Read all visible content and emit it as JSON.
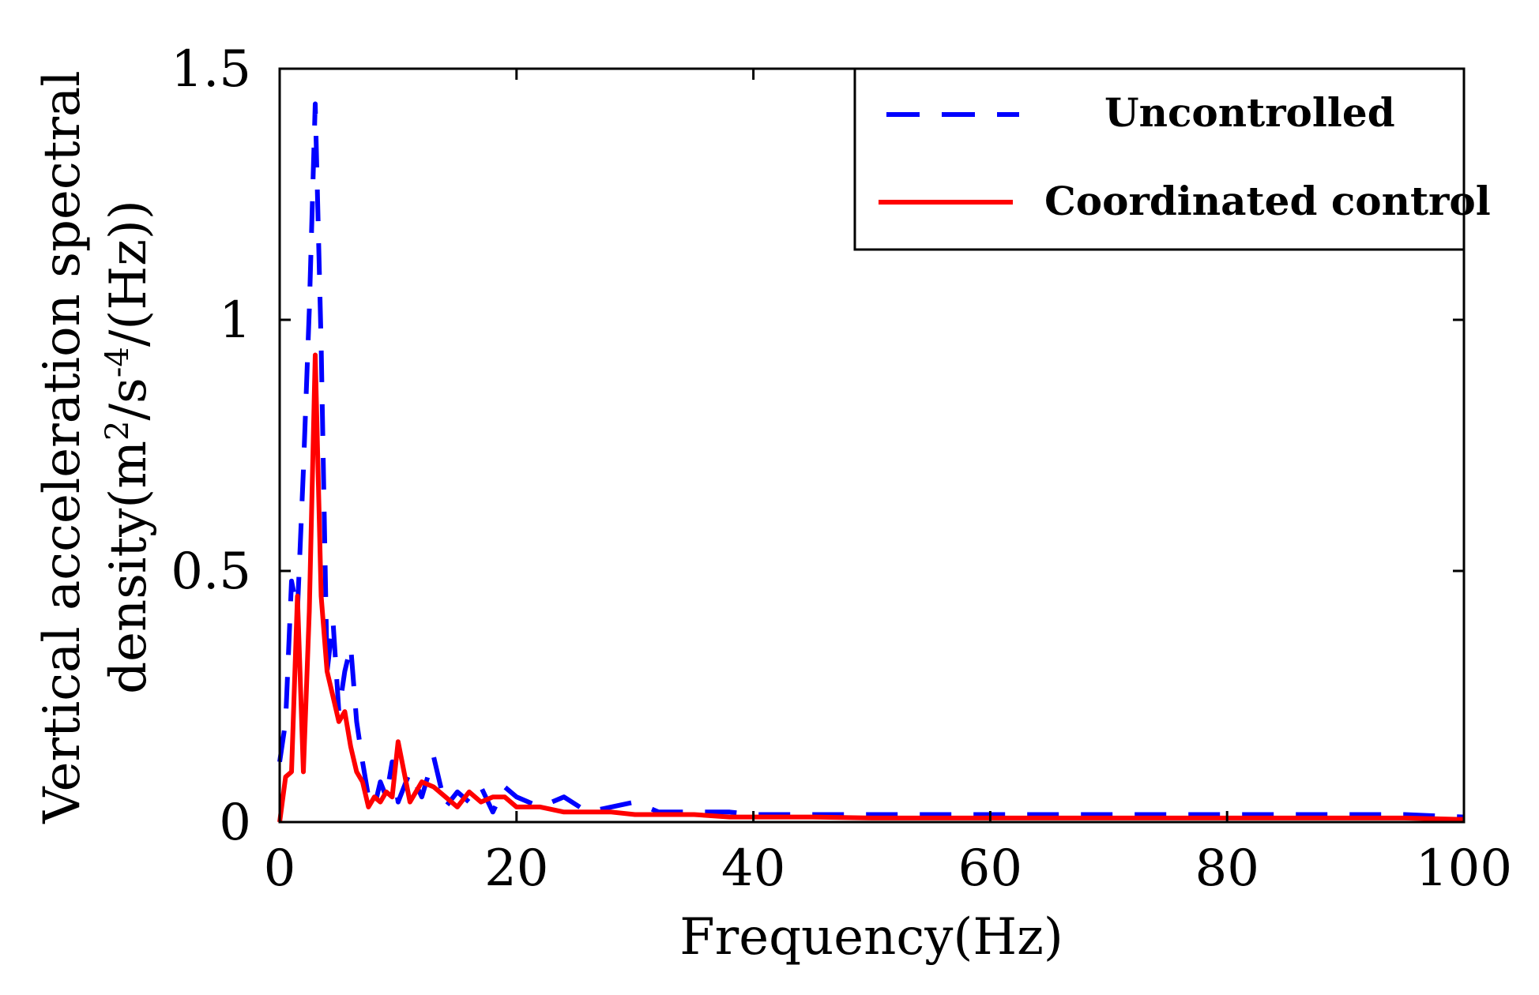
{
  "chart_data": {
    "type": "line",
    "title": "",
    "xlabel": "Frequency(Hz)",
    "ylabel_line1": "Vertical acceleration spectral",
    "ylabel_line2_prefix": "density(m",
    "ylabel_line2_sup1": "2",
    "ylabel_line2_mid": "/s",
    "ylabel_line2_sup2": "-4",
    "ylabel_line2_suffix": "/(Hz))",
    "xlim": [
      0,
      100
    ],
    "ylim": [
      0,
      1.5
    ],
    "xticks": [
      "0",
      "20",
      "40",
      "60",
      "80",
      "100"
    ],
    "xtick_values": [
      0,
      20,
      40,
      60,
      80,
      100
    ],
    "yticks": [
      "0",
      "0.5",
      "1",
      "1.5"
    ],
    "ytick_values": [
      0,
      0.5,
      1,
      1.5
    ],
    "legend_position": "top-right",
    "series": [
      {
        "name": "Uncontrolled",
        "color": "#0000ff",
        "style": "dashed",
        "x": [
          0,
          0.5,
          1,
          1.5,
          2,
          2.5,
          3,
          3.5,
          4,
          4.5,
          5,
          5.5,
          6,
          6.5,
          7,
          7.5,
          8,
          8.5,
          9,
          9.5,
          10,
          11,
          12,
          13,
          14,
          15,
          16,
          17,
          18,
          19,
          20,
          22,
          24,
          26,
          28,
          30,
          32,
          35,
          38,
          40,
          45,
          50,
          55,
          60,
          65,
          70,
          75,
          80,
          85,
          90,
          95,
          100
        ],
        "values": [
          0.12,
          0.2,
          0.48,
          0.42,
          0.7,
          1.02,
          1.43,
          0.95,
          0.3,
          0.4,
          0.22,
          0.3,
          0.35,
          0.2,
          0.12,
          0.05,
          0.03,
          0.08,
          0.05,
          0.12,
          0.04,
          0.1,
          0.05,
          0.13,
          0.03,
          0.06,
          0.04,
          0.07,
          0.02,
          0.07,
          0.05,
          0.03,
          0.05,
          0.02,
          0.03,
          0.04,
          0.02,
          0.02,
          0.02,
          0.015,
          0.015,
          0.015,
          0.015,
          0.015,
          0.015,
          0.015,
          0.015,
          0.015,
          0.015,
          0.015,
          0.015,
          0.01
        ]
      },
      {
        "name": "Coordinated control",
        "color": "#ff0000",
        "style": "solid",
        "x": [
          0,
          0.5,
          1,
          1.5,
          2,
          2.5,
          3,
          3.5,
          4,
          4.5,
          5,
          5.5,
          6,
          6.5,
          7,
          7.5,
          8,
          8.5,
          9,
          9.5,
          10,
          11,
          12,
          13,
          14,
          15,
          16,
          17,
          18,
          19,
          20,
          22,
          24,
          26,
          28,
          30,
          32,
          35,
          38,
          40,
          45,
          50,
          55,
          60,
          65,
          70,
          75,
          80,
          85,
          90,
          95,
          100
        ],
        "values": [
          0.0,
          0.09,
          0.1,
          0.45,
          0.1,
          0.42,
          0.93,
          0.45,
          0.3,
          0.25,
          0.2,
          0.22,
          0.15,
          0.1,
          0.08,
          0.03,
          0.05,
          0.04,
          0.06,
          0.05,
          0.16,
          0.04,
          0.08,
          0.07,
          0.05,
          0.03,
          0.06,
          0.04,
          0.05,
          0.05,
          0.03,
          0.03,
          0.02,
          0.02,
          0.02,
          0.015,
          0.015,
          0.015,
          0.01,
          0.01,
          0.01,
          0.008,
          0.008,
          0.008,
          0.008,
          0.008,
          0.008,
          0.008,
          0.008,
          0.008,
          0.008,
          0.005
        ]
      }
    ]
  }
}
